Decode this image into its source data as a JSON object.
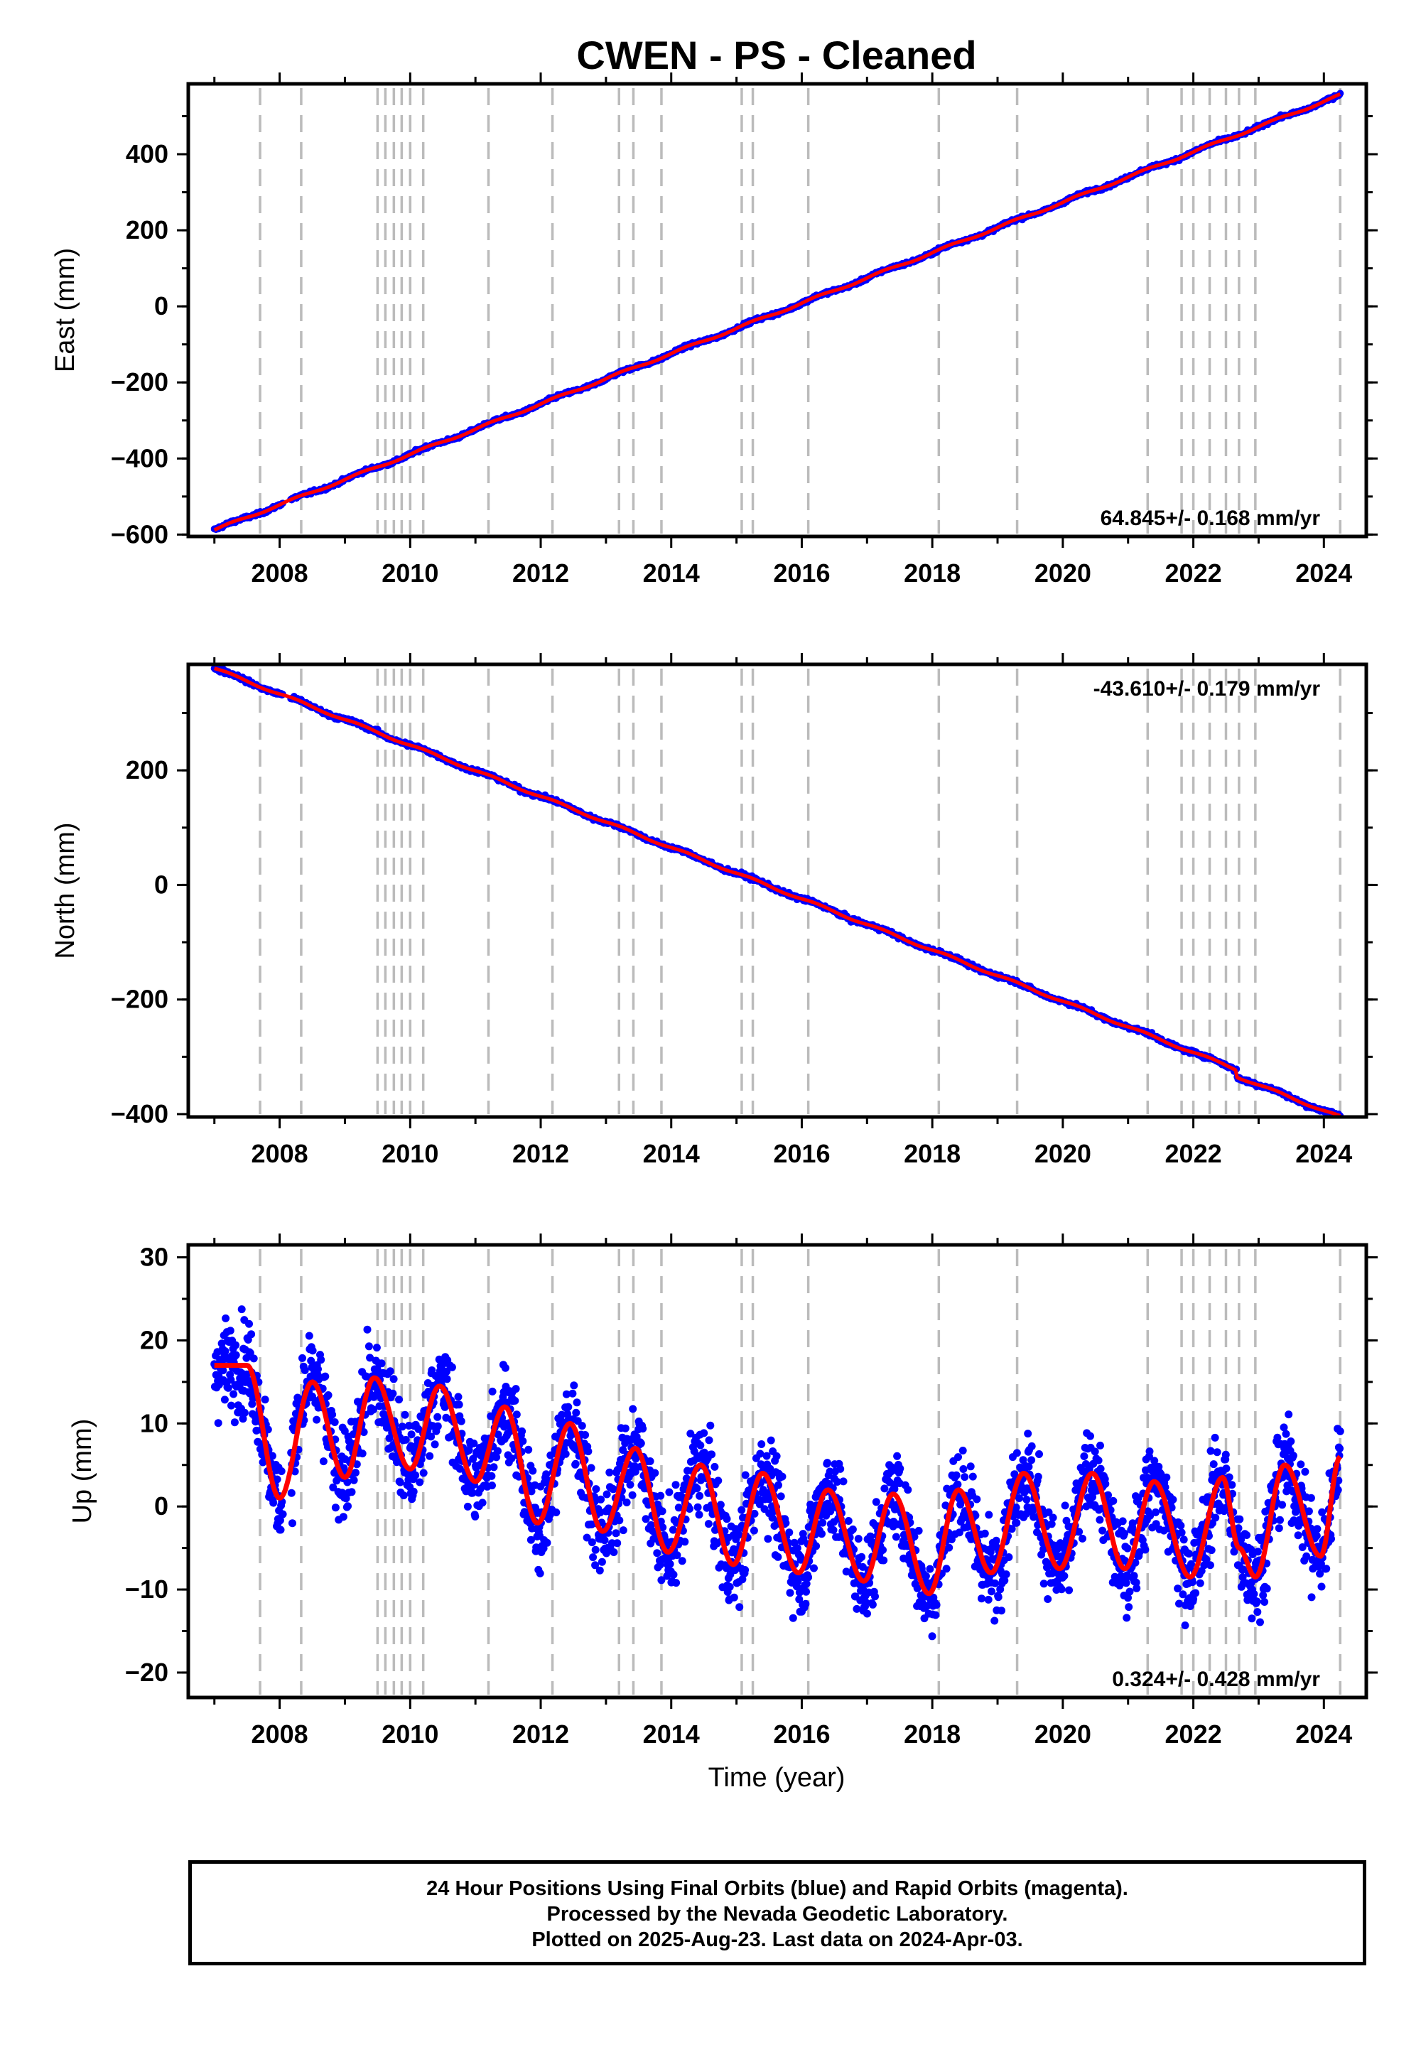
{
  "figure": {
    "title": "CWEN  - PS - Cleaned",
    "xlabel": "Time (year)",
    "footer": [
      "24 Hour Positions Using Final Orbits (blue) and Rapid Orbits (magenta).",
      "Processed by the Nevada Geodetic Laboratory.",
      "Plotted on 2025-Aug-23. Last data on 2024-Apr-03."
    ]
  },
  "colors": {
    "points": "#0000ff",
    "fit": "#ff0000",
    "events": "#bbbbbb",
    "frame": "#000000"
  },
  "chart_data": [
    {
      "type": "scatter",
      "ylabel": "East (mm)",
      "rate_label": "64.845+/- 0.168 mm/yr",
      "rate_position": "bottom-right",
      "xlim": [
        2006.6,
        2024.65
      ],
      "ylim": [
        -605,
        585
      ],
      "xticks": [
        2008,
        2010,
        2012,
        2014,
        2016,
        2018,
        2020,
        2022,
        2024
      ],
      "yticks": [
        -600,
        -400,
        -200,
        0,
        200,
        400
      ],
      "trend": {
        "x0": 2007.0,
        "y0": -588,
        "x1": 2024.25,
        "y1": 555
      },
      "scatter_sd": 3,
      "seasonal_amp": 3
    },
    {
      "type": "scatter",
      "ylabel": "North (mm)",
      "rate_label": "-43.610+/- 0.179 mm/yr",
      "rate_position": "top-right",
      "xlim": [
        2006.6,
        2024.65
      ],
      "ylim": [
        -405,
        385
      ],
      "xticks": [
        2008,
        2010,
        2012,
        2014,
        2016,
        2018,
        2020,
        2022,
        2024
      ],
      "yticks": [
        -400,
        -200,
        0,
        200
      ],
      "trend": {
        "x0": 2007.0,
        "y0": 378,
        "x1": 2024.25,
        "y1": -393
      },
      "offsets": [
        {
          "x": 2022.67,
          "dy": -12
        }
      ],
      "scatter_sd": 2.5,
      "seasonal_amp": 2
    },
    {
      "type": "scatter",
      "ylabel": "Up (mm)",
      "rate_label": "0.324+/- 0.428 mm/yr",
      "rate_position": "bottom-right",
      "xlim": [
        2006.6,
        2024.65
      ],
      "ylim": [
        -23,
        31.5
      ],
      "xticks": [
        2008,
        2010,
        2012,
        2014,
        2016,
        2018,
        2020,
        2022,
        2024
      ],
      "yticks": [
        -20,
        -10,
        0,
        10,
        20,
        30
      ],
      "scatter_sd": 3.8,
      "fit_peaks": [
        {
          "x": 2007.5,
          "y": 17.0
        },
        {
          "x": 2008.0,
          "y": 1.0
        },
        {
          "x": 2008.5,
          "y": 15.0
        },
        {
          "x": 2009.0,
          "y": 3.5
        },
        {
          "x": 2009.45,
          "y": 15.5
        },
        {
          "x": 2010.0,
          "y": 4.5
        },
        {
          "x": 2010.45,
          "y": 14.5
        },
        {
          "x": 2011.0,
          "y": 3.0
        },
        {
          "x": 2011.45,
          "y": 12.0
        },
        {
          "x": 2011.95,
          "y": -2.0
        },
        {
          "x": 2012.45,
          "y": 10.0
        },
        {
          "x": 2012.95,
          "y": -3.0
        },
        {
          "x": 2013.45,
          "y": 7.0
        },
        {
          "x": 2013.95,
          "y": -5.5
        },
        {
          "x": 2014.45,
          "y": 5.0
        },
        {
          "x": 2014.95,
          "y": -7.0
        },
        {
          "x": 2015.4,
          "y": 4.0
        },
        {
          "x": 2015.95,
          "y": -8.0
        },
        {
          "x": 2016.4,
          "y": 2.0
        },
        {
          "x": 2016.95,
          "y": -9.0
        },
        {
          "x": 2017.4,
          "y": 1.5
        },
        {
          "x": 2017.95,
          "y": -10.5
        },
        {
          "x": 2018.4,
          "y": 2.0
        },
        {
          "x": 2018.9,
          "y": -8.0
        },
        {
          "x": 2019.4,
          "y": 4.0
        },
        {
          "x": 2019.95,
          "y": -7.5
        },
        {
          "x": 2020.45,
          "y": 4.0
        },
        {
          "x": 2020.95,
          "y": -7.5
        },
        {
          "x": 2021.4,
          "y": 3.0
        },
        {
          "x": 2021.95,
          "y": -8.5
        },
        {
          "x": 2022.45,
          "y": 3.5
        },
        {
          "x": 2022.7,
          "y": -5.0
        },
        {
          "x": 2022.95,
          "y": -8.5
        },
        {
          "x": 2023.4,
          "y": 5.0
        },
        {
          "x": 2023.95,
          "y": -6.0
        },
        {
          "x": 2024.25,
          "y": 6.0
        }
      ]
    }
  ],
  "events_x": [
    2007.7,
    2008.33,
    2009.5,
    2009.62,
    2009.75,
    2009.87,
    2010.0,
    2010.2,
    2011.2,
    2012.18,
    2013.2,
    2013.42,
    2013.85,
    2015.08,
    2015.25,
    2016.1,
    2018.1,
    2019.3,
    2021.3,
    2021.82,
    2022.0,
    2022.25,
    2022.5,
    2022.7,
    2022.95,
    2024.25
  ]
}
